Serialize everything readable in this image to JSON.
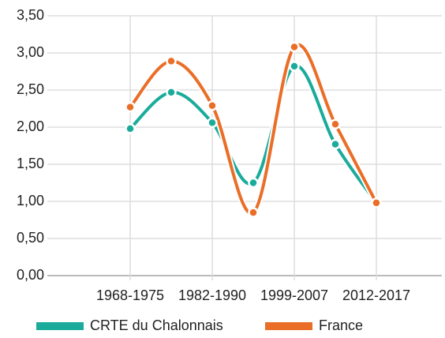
{
  "chart_data": {
    "type": "line",
    "categories": [
      "1968-1975",
      null,
      "1982-1990",
      null,
      "1999-2007",
      null,
      "2012-2017"
    ],
    "series": [
      {
        "name": "CRTE du Chalonnais",
        "color": "#1aab9b",
        "values": [
          1.98,
          2.47,
          2.06,
          1.25,
          2.82,
          1.77,
          0.98
        ]
      },
      {
        "name": "France",
        "color": "#ea6e28",
        "values": [
          2.27,
          2.89,
          2.29,
          0.85,
          3.08,
          2.04,
          0.98
        ]
      }
    ],
    "ylim": [
      0,
      3.5
    ],
    "yticks": [
      {
        "value": 0,
        "label": "0,00"
      },
      {
        "value": 0.5,
        "label": "0,50"
      },
      {
        "value": 1,
        "label": "1,00"
      },
      {
        "value": 1.5,
        "label": "1,50"
      },
      {
        "value": 2,
        "label": "2,00"
      },
      {
        "value": 2.5,
        "label": "2,50"
      },
      {
        "value": 3,
        "label": "3,00"
      },
      {
        "value": 3.5,
        "label": "3,50"
      }
    ],
    "grid": true,
    "smooth": true,
    "legend": "bottom"
  }
}
